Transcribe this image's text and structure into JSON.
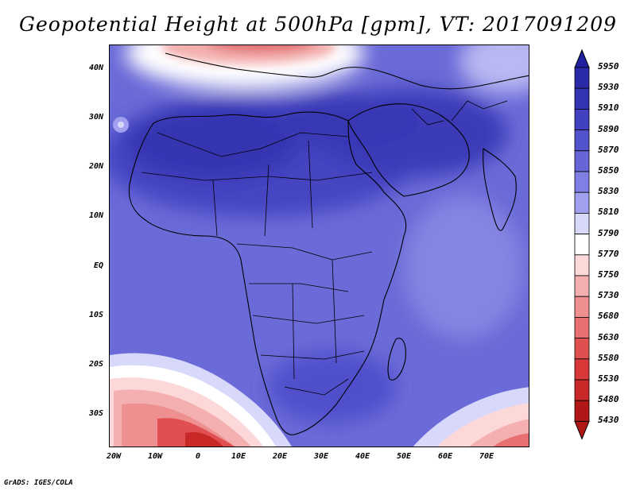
{
  "title": "Geopotential Height at 500hPa [gpm], VT: 2017091209",
  "credit": "GrADS: IGES/COLA",
  "lat_labels": [
    "40N",
    "30N",
    "20N",
    "10N",
    "EQ",
    "10S",
    "20S",
    "30S"
  ],
  "lon_labels": [
    "20W",
    "10W",
    "0",
    "10E",
    "20E",
    "30E",
    "40E",
    "50E",
    "60E",
    "70E"
  ],
  "colorbar": {
    "levels": [
      "5950",
      "5930",
      "5910",
      "5890",
      "5870",
      "5850",
      "5830",
      "5810",
      "5790",
      "5770",
      "5750",
      "5730",
      "5680",
      "5630",
      "5580",
      "5530",
      "5480",
      "5430"
    ],
    "colors": [
      "#2020a0",
      "#2a2aa8",
      "#3333b4",
      "#4040c0",
      "#5252cc",
      "#6666d8",
      "#8080e4",
      "#a0a0ee",
      "#d8d8fa",
      "#ffffff",
      "#fcd8d8",
      "#f4b0b0",
      "#ee9090",
      "#e87070",
      "#e05050",
      "#d83838",
      "#c82828",
      "#b01818"
    ]
  }
}
